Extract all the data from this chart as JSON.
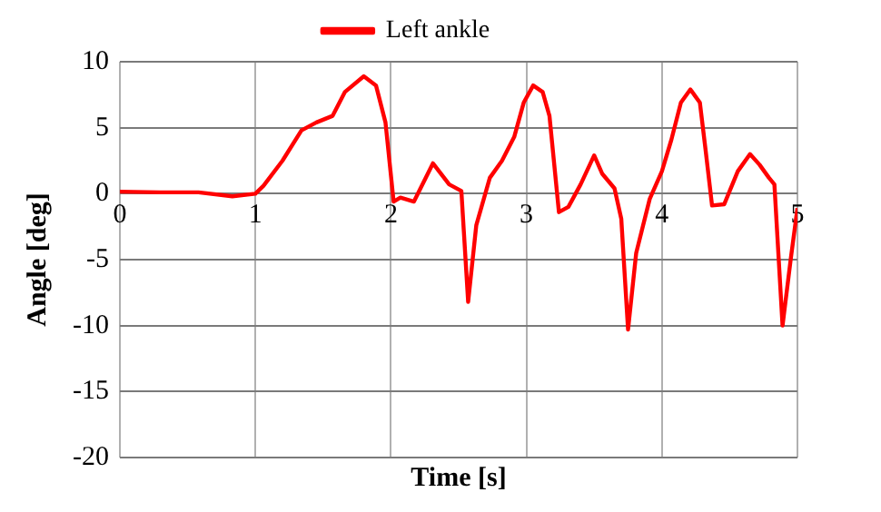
{
  "chart_data": {
    "type": "line",
    "xlabel": "Time [s]",
    "ylabel": "Angle [deg]",
    "x": [
      0,
      0.3,
      0.58,
      0.83,
      1.0,
      1.06,
      1.2,
      1.34,
      1.45,
      1.57,
      1.66,
      1.8,
      1.89,
      1.96,
      2.02,
      2.07,
      2.17,
      2.31,
      2.43,
      2.52,
      2.57,
      2.63,
      2.73,
      2.82,
      2.91,
      2.98,
      3.05,
      3.12,
      3.17,
      3.24,
      3.31,
      3.4,
      3.5,
      3.56,
      3.65,
      3.7,
      3.75,
      3.81,
      3.91,
      4.0,
      4.07,
      4.14,
      4.21,
      4.28,
      4.32,
      4.37,
      4.46,
      4.56,
      4.65,
      4.72,
      4.79,
      4.83,
      4.89,
      4.95,
      5.0
    ],
    "series": [
      {
        "name": "Left ankle",
        "color": "#ff0000",
        "values": [
          0.15,
          0.1,
          0.1,
          -0.2,
          0,
          0.6,
          2.5,
          4.8,
          5.4,
          5.9,
          7.7,
          8.9,
          8.2,
          5.4,
          -0.6,
          -0.3,
          -0.6,
          2.3,
          0.7,
          0.2,
          -8.2,
          -2.4,
          1.2,
          2.5,
          4.3,
          6.9,
          8.2,
          7.7,
          5.9,
          -1.4,
          -1.0,
          0.7,
          2.9,
          1.5,
          0.4,
          -1.9,
          -10.3,
          -4.5,
          -0.4,
          1.7,
          4.1,
          6.9,
          7.9,
          6.9,
          3.5,
          -0.9,
          -0.8,
          1.7,
          3.0,
          2.2,
          1.2,
          0.7,
          -10.0,
          -5.0,
          -1.1
        ]
      }
    ],
    "xlim": [
      0,
      5
    ],
    "xticks": [
      0,
      1,
      2,
      3,
      4,
      5
    ],
    "ylim": [
      -20,
      10
    ],
    "yticks": [
      -20,
      -15,
      -10,
      -5,
      0,
      5,
      10
    ],
    "grid": true,
    "legend": "top",
    "marker": "none",
    "line_style": "solid"
  }
}
